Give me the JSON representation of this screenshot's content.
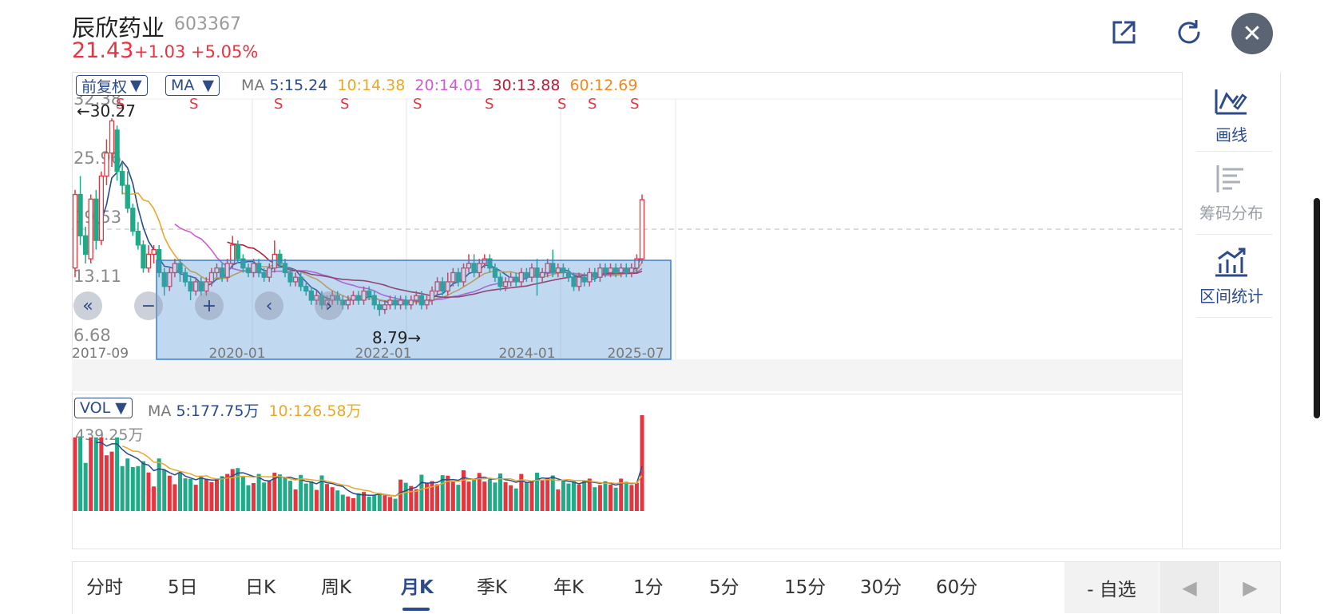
{
  "header": {
    "name": "辰欣药业",
    "code": "603367",
    "price": "21.43",
    "change": "+1.03",
    "change_pct": "+5.05%"
  },
  "icons": {
    "share": "share-external-icon",
    "refresh": "refresh-icon",
    "close": "close-icon"
  },
  "colors": {
    "up": "#e7343f",
    "down": "#1faa88",
    "accent": "#2d4a8a",
    "ma5": "#2a4a8c",
    "ma10": "#e8a92a",
    "ma20": "#d15ad6",
    "ma30": "#b0213c",
    "ma60": "#f08a24"
  },
  "main_panel": {
    "adjust_label": "前复权",
    "indicator_label": "MA",
    "ma_prefix": "MA",
    "ma5": "5:15.24",
    "ma10": "10:14.38",
    "ma20": "20:14.01",
    "ma30": "30:13.88",
    "ma60": "60:12.69",
    "y_ticks": [
      "32.38",
      "25.96",
      "19.53",
      "13.11",
      "6.68"
    ],
    "high_annotation": "←30.27",
    "low_annotation": "8.79→",
    "signal_label": "S",
    "x_ticks": [
      "2017-09",
      "2020-01",
      "2022-01",
      "2024-01",
      "2025-07"
    ]
  },
  "vol_panel": {
    "indicator_label": "VOL",
    "ma_prefix": "MA",
    "ma5": "5:177.75万",
    "ma10": "10:126.58万",
    "max_label": "439.25万"
  },
  "right_tools": [
    {
      "label": "画线",
      "icon": "draw-line-icon"
    },
    {
      "label": "筹码分布",
      "icon": "chip-distribution-icon"
    },
    {
      "label": "区间统计",
      "icon": "interval-stats-icon"
    }
  ],
  "period_tabs": [
    "分时",
    "5日",
    "日K",
    "周K",
    "月K",
    "季K",
    "年K",
    "1分",
    "5分",
    "15分",
    "30分",
    "60分"
  ],
  "active_tab": "月K",
  "watchlist_label": "- 自选",
  "chart_data": {
    "type": "candlestick",
    "period": "monthly",
    "x_range": [
      "2017-09",
      "2025-07"
    ],
    "y_range": [
      6.68,
      32.38
    ],
    "last_close": 21.43,
    "highest": 30.27,
    "lowest": 8.79,
    "candles": [
      [
        14.0,
        22.0,
        13.0,
        22.5
      ],
      [
        22.0,
        17.5,
        16.5,
        24.0
      ],
      [
        17.5,
        15.5,
        14.5,
        18.5
      ],
      [
        15.0,
        21.5,
        14.5,
        22.0
      ],
      [
        21.5,
        17.0,
        16.0,
        22.5
      ],
      [
        17.0,
        24.0,
        16.5,
        24.5
      ],
      [
        24.0,
        26.5,
        23.0,
        28.0
      ],
      [
        26.5,
        30.0,
        25.0,
        30.27
      ],
      [
        29.0,
        24.5,
        23.5,
        29.5
      ],
      [
        24.5,
        23.0,
        22.0,
        25.5
      ],
      [
        23.0,
        20.5,
        20.0,
        24.5
      ],
      [
        20.5,
        18.0,
        17.5,
        21.0
      ],
      [
        18.0,
        16.5,
        16.0,
        19.0
      ],
      [
        16.5,
        14.0,
        13.5,
        17.0
      ],
      [
        14.0,
        15.5,
        13.5,
        16.5
      ],
      [
        15.5,
        16.0,
        14.5,
        16.5
      ],
      [
        16.0,
        13.5,
        13.0,
        16.5
      ],
      [
        13.5,
        12.0,
        11.0,
        14.0
      ],
      [
        12.0,
        13.5,
        11.5,
        14.0
      ],
      [
        13.5,
        14.5,
        13.0,
        15.0
      ],
      [
        14.5,
        13.5,
        12.5,
        15.0
      ],
      [
        13.5,
        12.5,
        12.0,
        14.0
      ],
      [
        12.5,
        11.5,
        10.5,
        13.0
      ],
      [
        11.5,
        12.5,
        11.0,
        13.0
      ],
      [
        12.5,
        11.5,
        11.0,
        13.0
      ],
      [
        11.5,
        12.5,
        11.0,
        13.0
      ],
      [
        12.5,
        13.5,
        12.0,
        14.0
      ],
      [
        13.5,
        14.0,
        13.0,
        14.5
      ],
      [
        14.0,
        13.0,
        12.5,
        14.5
      ],
      [
        13.0,
        14.5,
        12.5,
        15.0
      ],
      [
        14.5,
        16.5,
        14.0,
        17.5
      ],
      [
        16.5,
        15.0,
        14.5,
        17.0
      ],
      [
        15.0,
        14.0,
        13.5,
        15.5
      ],
      [
        14.0,
        13.5,
        13.0,
        14.5
      ],
      [
        13.5,
        14.5,
        13.0,
        15.0
      ],
      [
        14.5,
        13.5,
        13.0,
        15.0
      ],
      [
        13.5,
        13.0,
        12.5,
        14.0
      ],
      [
        13.0,
        14.0,
        12.5,
        14.5
      ],
      [
        14.0,
        15.5,
        13.5,
        17.0
      ],
      [
        15.5,
        14.5,
        14.0,
        16.0
      ],
      [
        14.5,
        13.5,
        13.0,
        15.0
      ],
      [
        13.5,
        12.5,
        12.0,
        14.0
      ],
      [
        12.5,
        13.0,
        12.0,
        13.5
      ],
      [
        13.0,
        12.0,
        11.5,
        13.5
      ],
      [
        12.0,
        11.5,
        11.0,
        12.5
      ],
      [
        11.5,
        10.5,
        10.0,
        12.0
      ],
      [
        10.5,
        11.0,
        10.0,
        11.5
      ],
      [
        11.0,
        10.0,
        9.5,
        11.5
      ],
      [
        10.0,
        10.5,
        9.5,
        11.0
      ],
      [
        10.5,
        11.0,
        10.0,
        11.5
      ],
      [
        11.0,
        10.5,
        10.0,
        11.5
      ],
      [
        10.5,
        10.0,
        9.5,
        11.0
      ],
      [
        10.0,
        10.5,
        9.5,
        11.0
      ],
      [
        10.5,
        11.0,
        10.0,
        11.5
      ],
      [
        11.0,
        10.5,
        10.0,
        11.5
      ],
      [
        10.5,
        11.5,
        10.0,
        12.0
      ],
      [
        11.5,
        11.0,
        10.5,
        12.0
      ],
      [
        11.0,
        10.0,
        9.5,
        11.5
      ],
      [
        10.0,
        9.5,
        8.79,
        10.5
      ],
      [
        9.5,
        10.0,
        9.0,
        10.5
      ],
      [
        10.0,
        10.5,
        9.5,
        11.0
      ],
      [
        10.5,
        10.0,
        9.5,
        11.0
      ],
      [
        10.0,
        10.5,
        9.5,
        11.0
      ],
      [
        10.5,
        10.0,
        9.5,
        11.0
      ],
      [
        10.0,
        10.5,
        9.5,
        11.0
      ],
      [
        10.5,
        11.0,
        10.0,
        11.5
      ],
      [
        11.0,
        10.0,
        9.5,
        11.5
      ],
      [
        10.0,
        10.5,
        9.5,
        11.0
      ],
      [
        10.5,
        11.5,
        10.0,
        12.0
      ],
      [
        11.5,
        12.5,
        11.0,
        13.0
      ],
      [
        12.5,
        11.5,
        11.0,
        13.0
      ],
      [
        11.5,
        12.5,
        11.0,
        13.5
      ],
      [
        12.5,
        13.5,
        12.0,
        14.0
      ],
      [
        13.5,
        12.5,
        12.0,
        14.0
      ],
      [
        12.5,
        14.0,
        12.0,
        14.5
      ],
      [
        14.0,
        14.5,
        13.5,
        15.5
      ],
      [
        14.5,
        13.5,
        13.0,
        15.5
      ],
      [
        13.5,
        14.5,
        13.0,
        15.0
      ],
      [
        14.5,
        15.0,
        14.0,
        15.5
      ],
      [
        15.0,
        14.0,
        13.5,
        15.5
      ],
      [
        14.0,
        13.0,
        12.5,
        14.5
      ],
      [
        13.0,
        12.0,
        11.5,
        13.5
      ],
      [
        12.0,
        12.5,
        11.5,
        13.0
      ],
      [
        12.5,
        13.0,
        12.0,
        13.5
      ],
      [
        13.0,
        12.5,
        12.0,
        13.5
      ],
      [
        12.5,
        13.5,
        12.0,
        14.0
      ],
      [
        13.5,
        13.0,
        12.5,
        14.0
      ],
      [
        13.0,
        14.0,
        12.5,
        14.5
      ],
      [
        14.0,
        13.0,
        11.0,
        15.0
      ],
      [
        13.0,
        13.5,
        12.5,
        14.0
      ],
      [
        13.5,
        14.5,
        13.0,
        15.0
      ],
      [
        14.5,
        13.5,
        13.0,
        16.0
      ],
      [
        13.5,
        14.0,
        13.0,
        14.5
      ],
      [
        14.0,
        13.5,
        13.0,
        14.5
      ],
      [
        13.5,
        13.0,
        12.5,
        14.0
      ],
      [
        13.0,
        12.0,
        11.5,
        13.5
      ],
      [
        12.0,
        13.0,
        11.5,
        13.5
      ],
      [
        13.0,
        12.5,
        12.0,
        13.5
      ],
      [
        12.5,
        13.5,
        12.0,
        14.0
      ],
      [
        13.5,
        13.0,
        12.5,
        14.0
      ],
      [
        13.0,
        14.0,
        12.5,
        14.5
      ],
      [
        14.0,
        13.5,
        13.0,
        14.5
      ],
      [
        13.5,
        14.0,
        13.0,
        14.5
      ],
      [
        14.0,
        13.5,
        13.0,
        14.5
      ],
      [
        13.5,
        14.0,
        13.0,
        14.5
      ],
      [
        14.0,
        13.5,
        13.0,
        14.5
      ],
      [
        13.5,
        14.0,
        13.0,
        14.5
      ],
      [
        14.0,
        15.0,
        13.5,
        15.5
      ],
      [
        15.0,
        21.43,
        14.5,
        22.0
      ]
    ],
    "volume_max": 439.25,
    "volume_unit": "万"
  }
}
